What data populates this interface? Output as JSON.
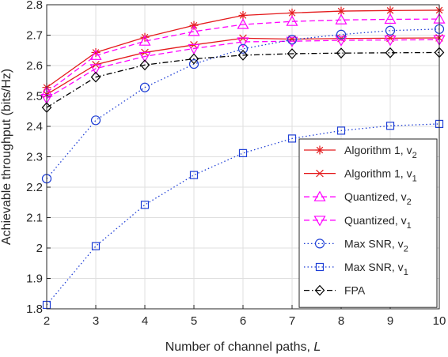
{
  "chart_data": {
    "type": "line",
    "xlabel": "Number of channel paths, ",
    "xlabel_var": "L",
    "ylabel": "Achievable throughput (bits/Hz)",
    "xlim": [
      2,
      10
    ],
    "ylim": [
      1.8,
      2.8
    ],
    "x": [
      2,
      3,
      4,
      5,
      6,
      7,
      8,
      9,
      10
    ],
    "xticks": [
      "2",
      "3",
      "4",
      "5",
      "6",
      "7",
      "8",
      "9",
      "10"
    ],
    "yticks": [
      "1.8",
      "1.9",
      "2",
      "2.1",
      "2.2",
      "2.3",
      "2.4",
      "2.5",
      "2.6",
      "2.7",
      "2.8"
    ],
    "grid": true,
    "legend_position": "right-bottom inside",
    "series": [
      {
        "name": "Algorithm 1, v",
        "sub": "2",
        "color": "#e41a1c",
        "dash": "solid",
        "marker": "asterisk",
        "values": [
          2.528,
          2.643,
          2.693,
          2.732,
          2.765,
          2.773,
          2.779,
          2.781,
          2.782
        ]
      },
      {
        "name": "Algorithm 1, v",
        "sub": "1",
        "color": "#e41a1c",
        "dash": "solid",
        "marker": "x",
        "values": [
          2.505,
          2.603,
          2.643,
          2.668,
          2.69,
          2.687,
          2.689,
          2.69,
          2.691
        ]
      },
      {
        "name": "Quantized, v",
        "sub": "2",
        "color": "#ff00ff",
        "dash": "dashed",
        "marker": "triangle-up",
        "values": [
          2.512,
          2.633,
          2.68,
          2.712,
          2.735,
          2.745,
          2.75,
          2.752,
          2.753
        ]
      },
      {
        "name": "Quantized, v",
        "sub": "1",
        "color": "#ff00ff",
        "dash": "dashed",
        "marker": "triangle-down",
        "values": [
          2.492,
          2.59,
          2.63,
          2.656,
          2.678,
          2.68,
          2.683,
          2.684,
          2.685
        ]
      },
      {
        "name": "Max SNR, v",
        "sub": "2",
        "color": "#1f3fd6",
        "dash": "dotted",
        "marker": "circle",
        "values": [
          2.228,
          2.42,
          2.528,
          2.605,
          2.655,
          2.685,
          2.702,
          2.715,
          2.72
        ]
      },
      {
        "name": "Max SNR, v",
        "sub": "1",
        "color": "#1f3fd6",
        "dash": "dotted",
        "marker": "square",
        "values": [
          1.813,
          2.006,
          2.142,
          2.24,
          2.312,
          2.36,
          2.386,
          2.402,
          2.408
        ]
      },
      {
        "name": "FPA",
        "sub": "",
        "color": "#000000",
        "dash": "dashdot",
        "marker": "diamond",
        "values": [
          2.462,
          2.562,
          2.602,
          2.622,
          2.634,
          2.639,
          2.641,
          2.642,
          2.643
        ]
      }
    ]
  }
}
